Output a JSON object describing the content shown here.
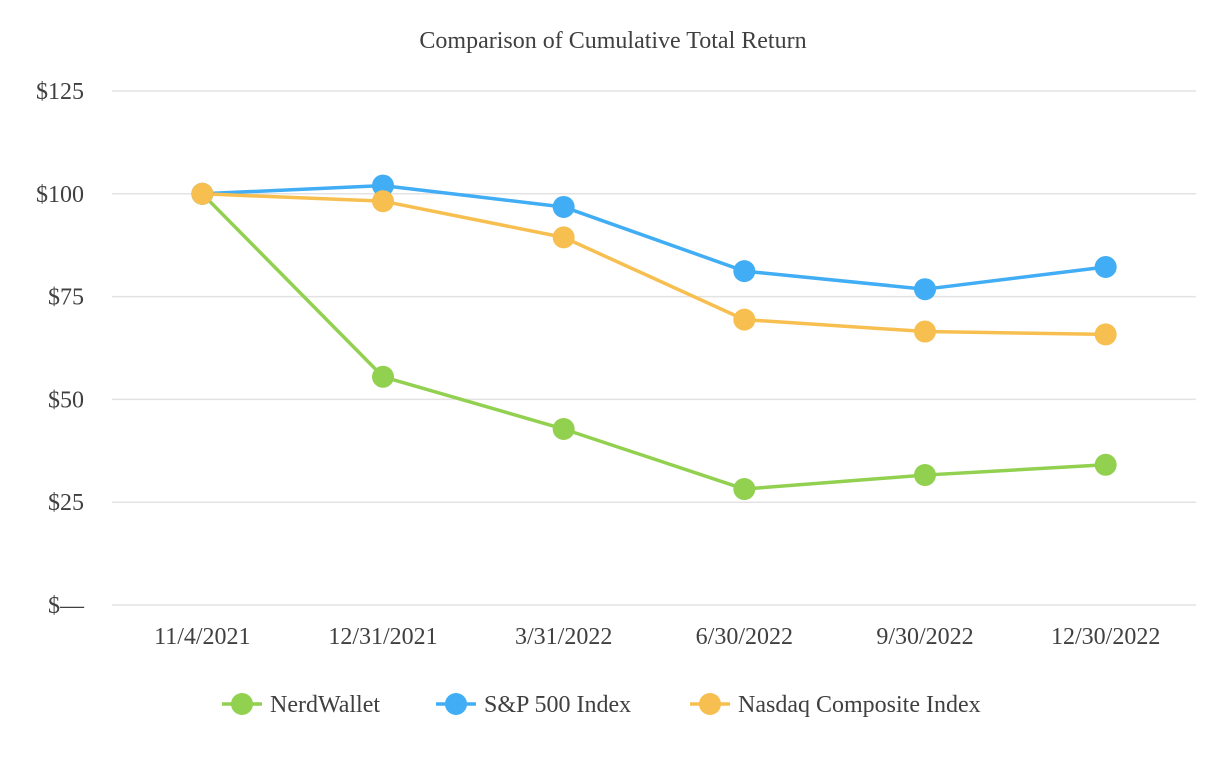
{
  "chart_data": {
    "type": "line",
    "title": "Comparison of Cumulative Total Return",
    "xlabel": "",
    "ylabel": "",
    "categories": [
      "11/4/2021",
      "12/31/2021",
      "3/31/2022",
      "6/30/2022",
      "9/30/2022",
      "12/30/2022"
    ],
    "yticks": [
      {
        "value": 0,
        "label": "$—"
      },
      {
        "value": 25,
        "label": "$25"
      },
      {
        "value": 50,
        "label": "$50"
      },
      {
        "value": 75,
        "label": "$75"
      },
      {
        "value": 100,
        "label": "$100"
      },
      {
        "value": 125,
        "label": "$125"
      }
    ],
    "ylim": [
      0,
      125
    ],
    "grid": true,
    "legend_position": "bottom",
    "series": [
      {
        "name": "NerdWallet",
        "color": "#92d050",
        "values": [
          100,
          55.5,
          42.8,
          28.2,
          31.6,
          34.1
        ]
      },
      {
        "name": "S&P 500 Index",
        "color": "#41adf5",
        "values": [
          100,
          102.0,
          96.8,
          81.2,
          76.8,
          82.2
        ]
      },
      {
        "name": "Nasdaq Composite Index",
        "color": "#f7bf4f",
        "values": [
          100,
          98.2,
          89.4,
          69.4,
          66.5,
          65.8
        ]
      }
    ]
  }
}
